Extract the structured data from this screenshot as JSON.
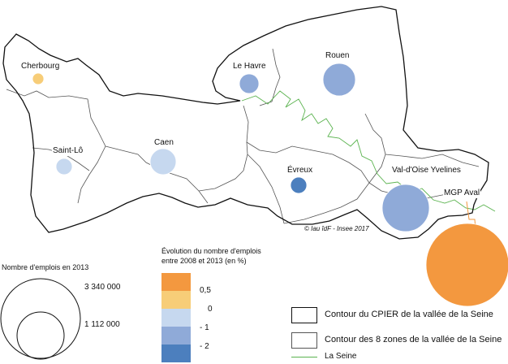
{
  "colors": {
    "class_1": "#f3983f",
    "class_2": "#f7cd78",
    "class_3": "#c6d8ef",
    "class_4": "#8faad8",
    "class_5": "#4c7fbe",
    "seine": "#5bb34f",
    "border": "#111111"
  },
  "places": [
    {
      "name": "Cherbourg",
      "class": "class_2"
    },
    {
      "name": "Le Havre",
      "class": "class_4"
    },
    {
      "name": "Rouen",
      "class": "class_4"
    },
    {
      "name": "Saint-Lô",
      "class": "class_3"
    },
    {
      "name": "Caen",
      "class": "class_3"
    },
    {
      "name": "Évreux",
      "class": "class_5"
    },
    {
      "name": "Val-d'Oise Yvelines",
      "class": "class_4"
    },
    {
      "name": "MGP Aval",
      "class": "class_1"
    }
  ],
  "credit": "© Iau îdF - Insee 2017",
  "size_legend": {
    "title": "Nombre d'emplois en 2013",
    "large": "3 340 000",
    "small": "1 112 000"
  },
  "evolution_legend": {
    "title_line1": "Évolution du nombre d'emplois",
    "title_line2": "entre 2008 et 2013 (en %)",
    "thresholds": [
      "0,5",
      "0",
      "- 1",
      "- 2"
    ]
  },
  "layer_legend": {
    "cpier": "Contour du CPIER de la vallée de la Seine",
    "zones": "Contour des 8 zones de la vallée de la Seine",
    "seine": "La Seine"
  }
}
